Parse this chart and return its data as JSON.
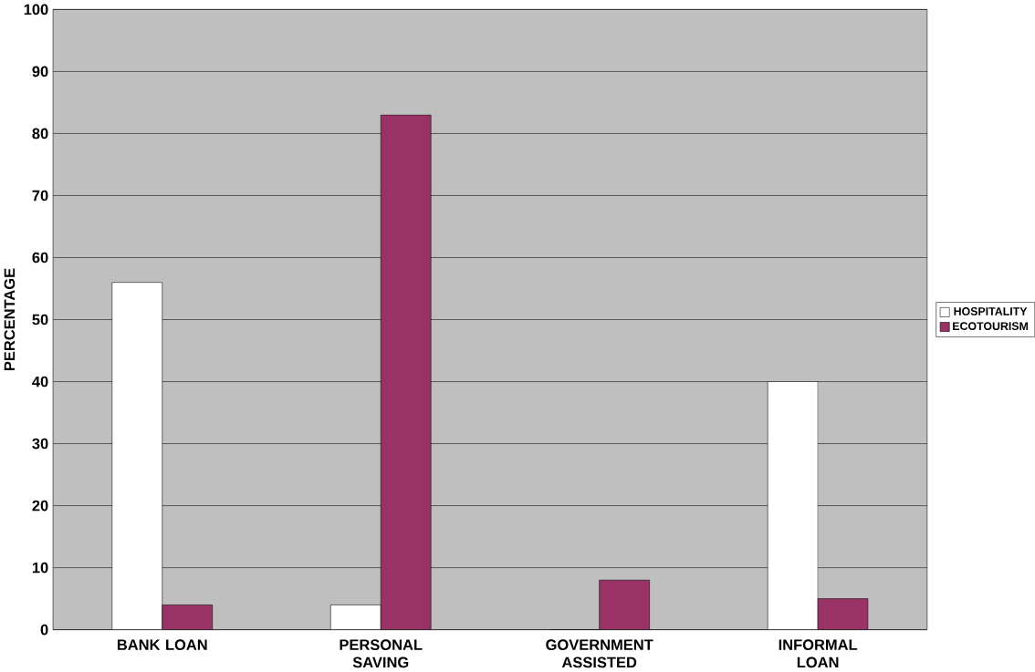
{
  "chart_data": {
    "type": "bar",
    "ylabel": "PERCENTAGE",
    "categories": [
      "BANK LOAN",
      "PERSONAL SAVING",
      "GOVERNMENT ASSISTED",
      "INFORMAL LOAN"
    ],
    "series": [
      {
        "name": "HOSPITALITY",
        "color": "#ffffff",
        "values": [
          56,
          4,
          0,
          40
        ]
      },
      {
        "name": "ECOTOURISM",
        "color": "#993366",
        "values": [
          4,
          83,
          8,
          5
        ]
      }
    ],
    "ylim": [
      0,
      100
    ],
    "yticks": [
      0,
      10,
      20,
      30,
      40,
      50,
      60,
      70,
      80,
      90,
      100
    ],
    "grid": "y",
    "legend": "right"
  }
}
